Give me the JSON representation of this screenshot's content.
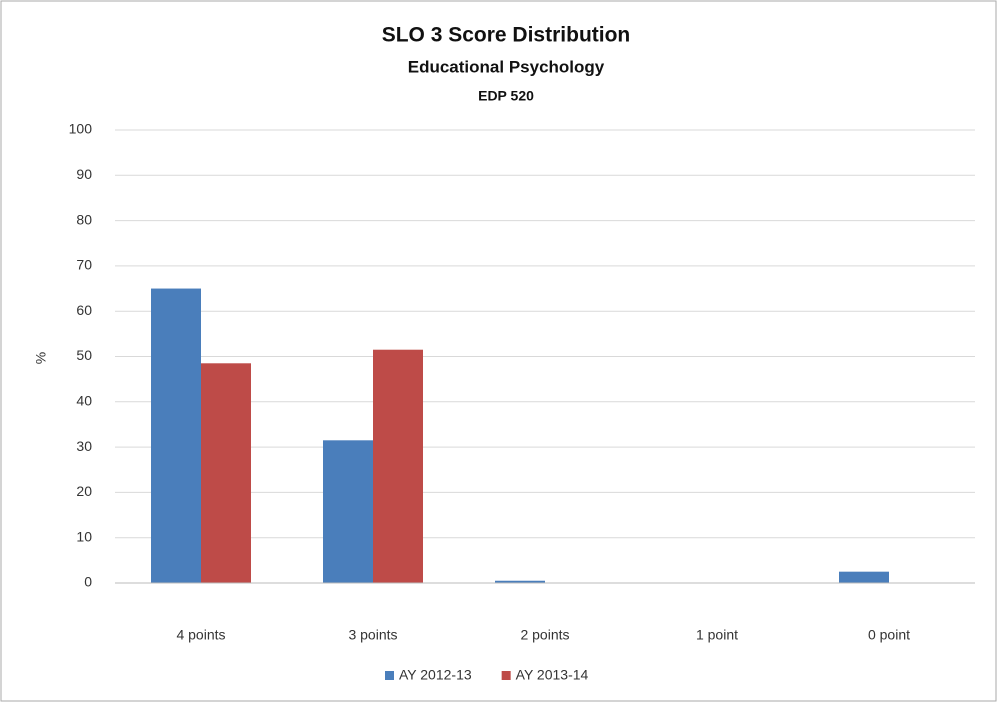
{
  "chart_data": {
    "type": "bar",
    "title": "SLO 3 Score Distribution",
    "subtitle": [
      "Educational Psychology",
      "EDP 520"
    ],
    "y_label": "%",
    "categories": [
      "4 points",
      "3 points",
      "2 points",
      "1 point",
      "0 point"
    ],
    "series": [
      {
        "name": "AY 2012-13",
        "color": "#4a7ebb",
        "values": [
          65,
          31.5,
          0.5,
          0,
          2.5
        ]
      },
      {
        "name": "AY 2013-14",
        "color": "#be4b48",
        "values": [
          48.5,
          51.5,
          0,
          0,
          0
        ]
      }
    ],
    "ylim": [
      0,
      100
    ],
    "yticks": [
      0,
      10,
      20,
      30,
      40,
      50,
      60,
      70,
      80,
      90,
      100
    ],
    "grid": true,
    "legend": "bottom"
  }
}
